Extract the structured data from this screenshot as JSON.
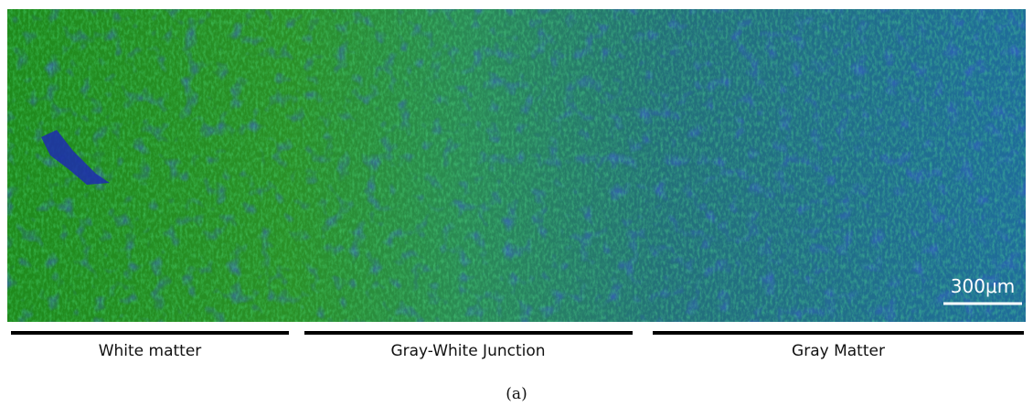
{
  "image": {
    "scale_bar": "300μm"
  },
  "regions": [
    {
      "label": "White matter"
    },
    {
      "label": "Gray-White Junction"
    },
    {
      "label": "Gray Matter"
    }
  ],
  "caption": "(a)"
}
